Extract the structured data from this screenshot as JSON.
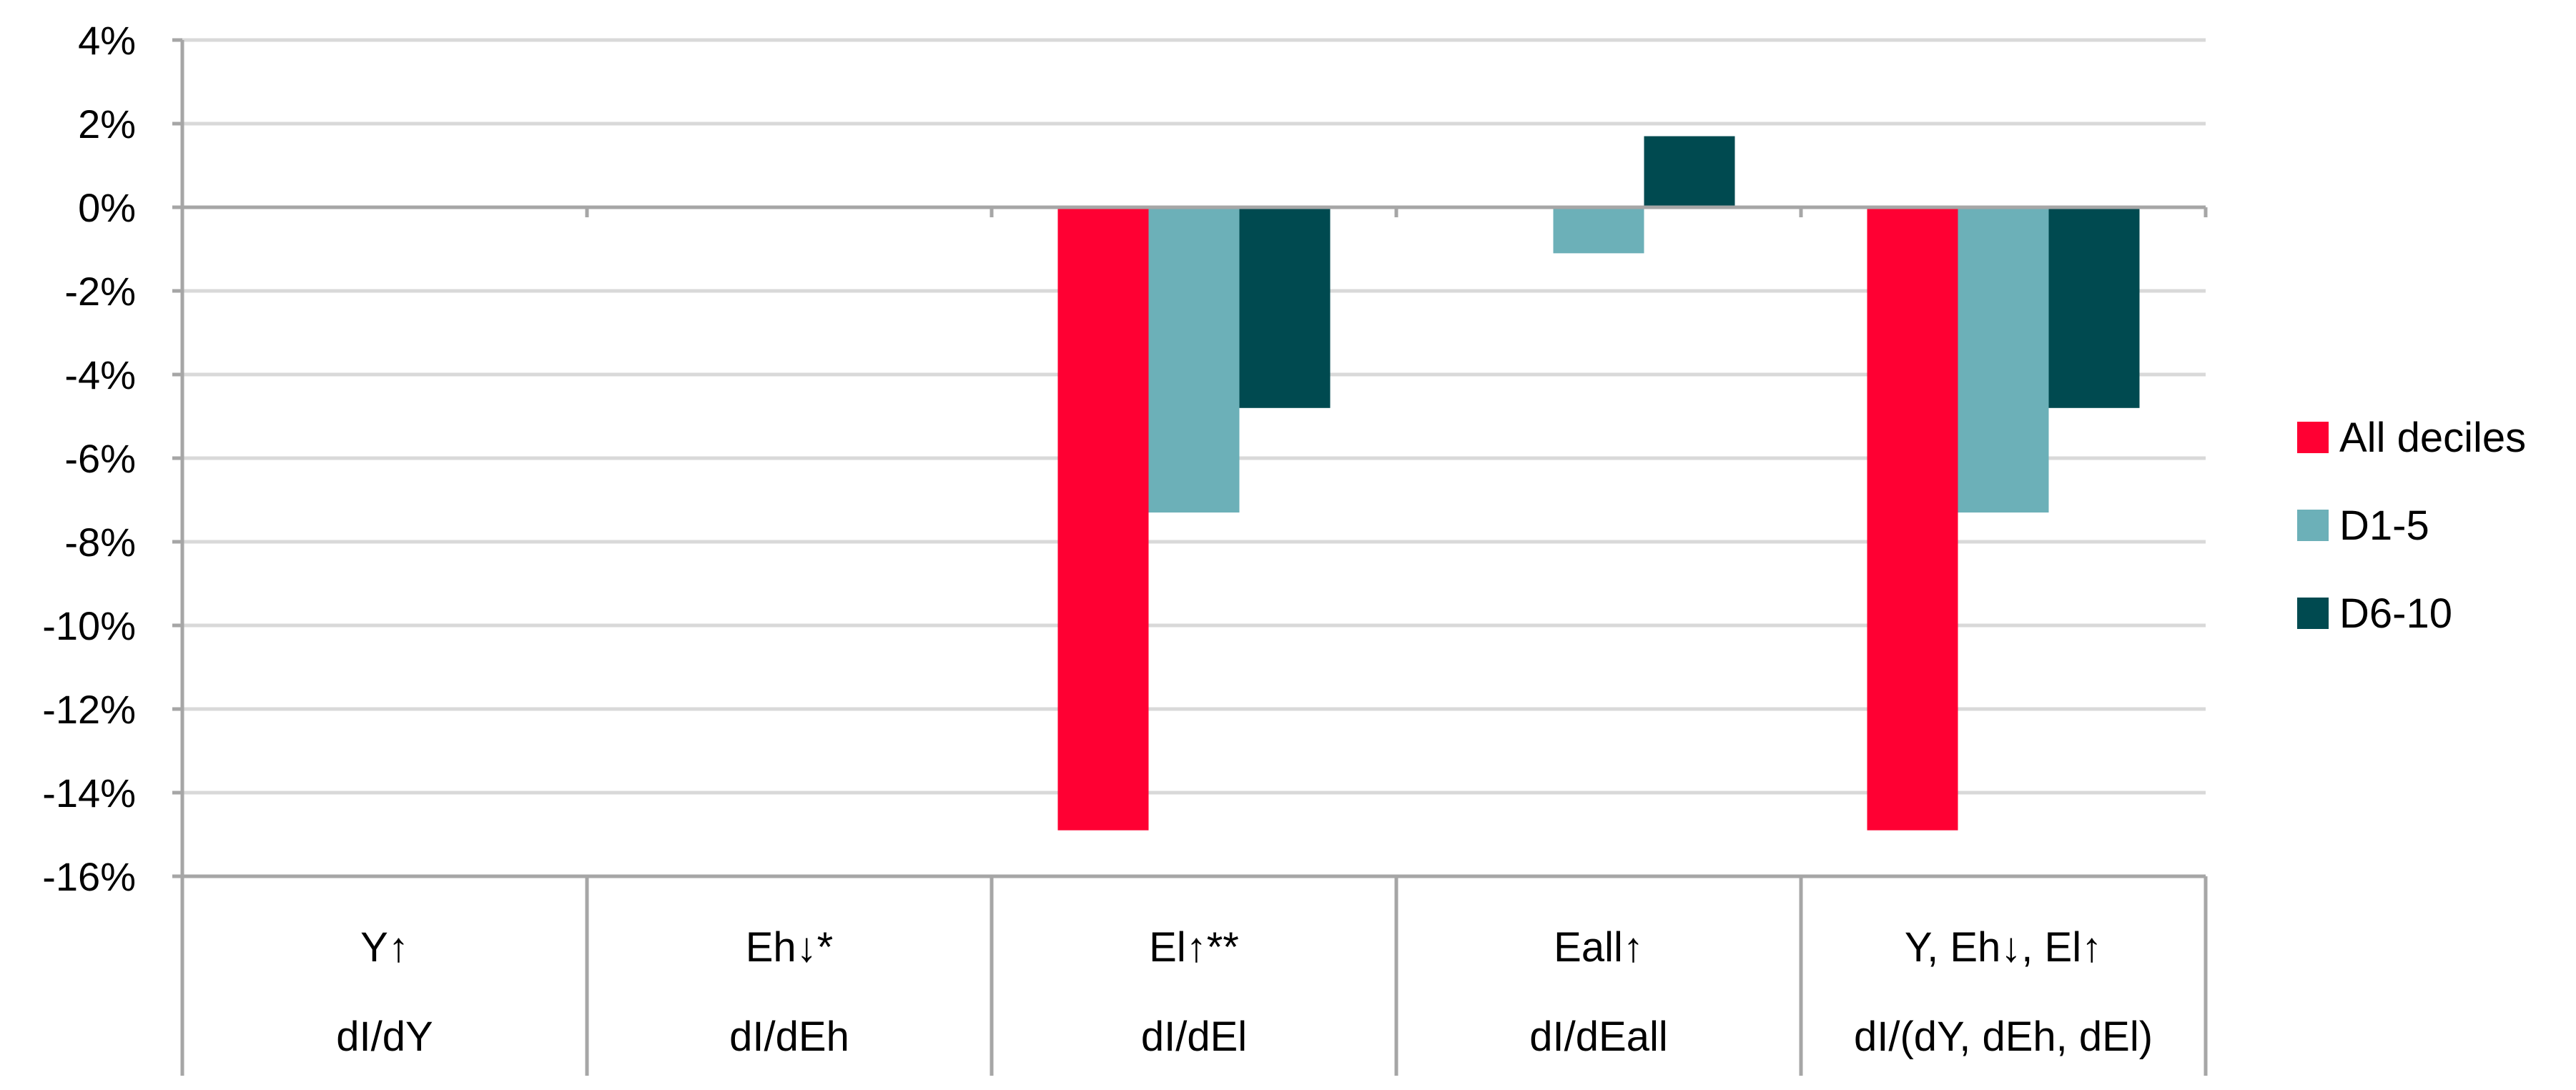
{
  "chart_data": {
    "type": "bar",
    "title": "",
    "xlabel": "",
    "ylabel": "",
    "ylim": [
      -16,
      4
    ],
    "yticks": [
      "4%",
      "2%",
      "0%",
      "-2%",
      "-4%",
      "-6%",
      "-8%",
      "-10%",
      "-12%",
      "-14%",
      "-16%"
    ],
    "ytick_values": [
      4,
      2,
      0,
      -2,
      -4,
      -6,
      -8,
      -10,
      -12,
      -14,
      -16
    ],
    "grid": true,
    "legend_position": "right",
    "categories": [
      {
        "line1": "Y↑",
        "line2": "dI/dY"
      },
      {
        "line1": "Eh↓*",
        "line2": "dI/dEh"
      },
      {
        "line1": "El↑**",
        "line2": "dI/dEl"
      },
      {
        "line1": "Eall↑",
        "line2": "dI/dEall"
      },
      {
        "line1": "Y, Eh↓, El↑",
        "line2": "dI/(dY, dEh, dEl)"
      }
    ],
    "series": [
      {
        "name": "All deciles",
        "color": "#ff0033",
        "values": [
          0,
          0,
          -14.9,
          0,
          -14.9
        ]
      },
      {
        "name": "D1-5",
        "color": "#6cb0b8",
        "values": [
          0,
          0,
          -7.3,
          -1.1,
          -7.3
        ]
      },
      {
        "name": "D6-10",
        "color": "#004a50",
        "values": [
          0,
          0,
          -4.8,
          1.7,
          -4.8
        ]
      }
    ]
  }
}
